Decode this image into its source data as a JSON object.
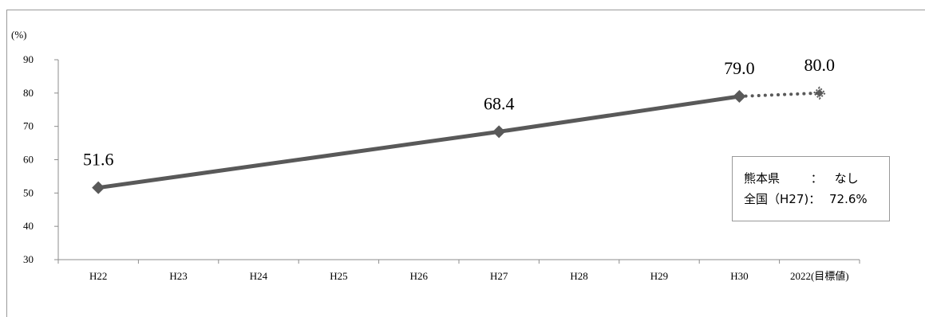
{
  "chart_data": {
    "type": "line",
    "ylabel": "(%)",
    "ylim": [
      30,
      90
    ],
    "yticks": [
      30,
      40,
      50,
      60,
      70,
      80,
      90
    ],
    "categories": [
      "H22",
      "H23",
      "H24",
      "H25",
      "H26",
      "H27",
      "H28",
      "H29",
      "H30",
      "2022(目標値)"
    ],
    "series": [
      {
        "values": [
          51.6,
          null,
          null,
          null,
          null,
          68.4,
          null,
          null,
          79.0,
          null
        ],
        "labels": [
          "51.6",
          "",
          "",
          "",
          "",
          "68.4",
          "",
          "",
          "79.0",
          ""
        ],
        "style": "solid",
        "color": "#595959"
      },
      {
        "values": [
          null,
          null,
          null,
          null,
          null,
          null,
          null,
          null,
          79.0,
          80.0
        ],
        "labels": [
          "",
          "",
          "",
          "",
          "",
          "",
          "",
          "",
          "",
          "80.0"
        ],
        "style": "dotted",
        "color": "#595959"
      }
    ],
    "grid": false,
    "legend": "none"
  },
  "note": {
    "row1_label": "熊本県",
    "row1_sep": "：",
    "row1_value": "なし",
    "row2_label": "全国（H27)：",
    "row2_value": "72.6%"
  }
}
